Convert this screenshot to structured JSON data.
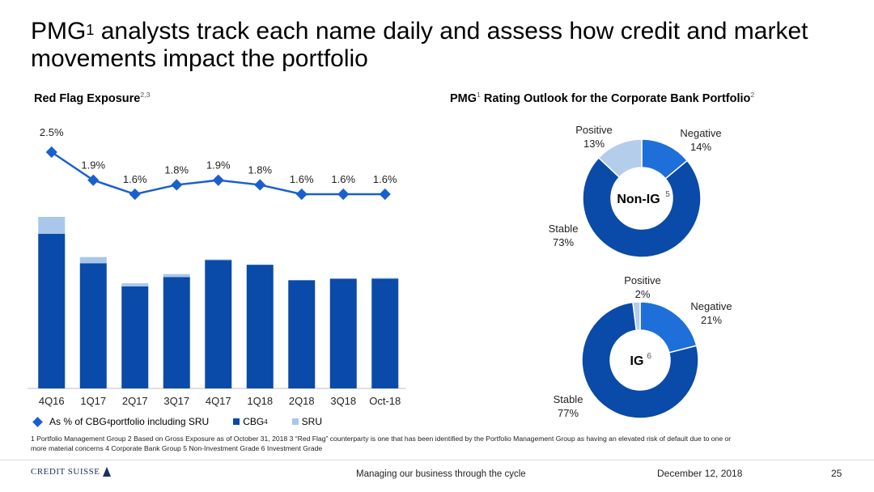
{
  "title": {
    "prefix": "PMG",
    "sup": "1",
    "text": " analysts track each name daily and assess how credit and market movements impact the portfolio"
  },
  "left_header": {
    "text": "Red Flag Exposure",
    "sup": "2,3"
  },
  "right_header": {
    "prefix": "PMG",
    "sup1": "1",
    "text": " Rating Outlook for the Corporate Bank Portfolio",
    "sup2": "2"
  },
  "colors": {
    "cbg": "#0a4aa8",
    "sru": "#a9c7ea",
    "line": "#1a5fd0",
    "pie_dark": "#0a4aa8",
    "pie_mid": "#1e6fd9",
    "pie_light": "#b4cdeb"
  },
  "chart_data": [
    {
      "type": "bar",
      "title": "Red Flag Exposure",
      "categories": [
        "4Q16",
        "1Q17",
        "2Q17",
        "3Q17",
        "4Q17",
        "1Q18",
        "2Q18",
        "3Q18",
        "Oct-18"
      ],
      "stacked": true,
      "axes_shown": false,
      "series": [
        {
          "name": "CBG",
          "values": [
            100,
            81,
            66,
            72,
            83,
            80,
            70,
            71,
            71
          ]
        },
        {
          "name": "SRU",
          "values": [
            11,
            4,
            2,
            2,
            0.5,
            0,
            0,
            0,
            0.5
          ]
        }
      ],
      "ylim": [
        0,
        120
      ],
      "legend": "bottom",
      "line_series": {
        "name": "As % of CBG portfolio including SRU",
        "values": [
          2.5,
          1.9,
          1.6,
          1.8,
          1.9,
          1.8,
          1.6,
          1.6,
          1.6
        ],
        "labels": [
          "2.5%",
          "1.9%",
          "1.6%",
          "1.8%",
          "1.9%",
          "1.8%",
          "1.6%",
          "1.6%",
          "1.6%"
        ]
      },
      "legend_labels": {
        "line": "As % of CBG",
        "line_sup": "4",
        "line_rest": " portfolio including SRU",
        "cbg": "CBG",
        "cbg_sup": "4",
        "sru": "SRU"
      }
    },
    {
      "type": "pie",
      "donut": true,
      "center_label": "Non-IG",
      "center_sup": "5",
      "slices": [
        {
          "name": "Negative",
          "value": 14,
          "label": "14%"
        },
        {
          "name": "Stable",
          "value": 73,
          "label": "73%"
        },
        {
          "name": "Positive",
          "value": 13,
          "label": "13%"
        }
      ]
    },
    {
      "type": "pie",
      "donut": true,
      "center_label": "IG",
      "center_sup": "6",
      "slices": [
        {
          "name": "Negative",
          "value": 21,
          "label": "21%"
        },
        {
          "name": "Stable",
          "value": 77,
          "label": "77%"
        },
        {
          "name": "Positive",
          "value": 2,
          "label": "2%"
        }
      ]
    }
  ],
  "footnotes": {
    "line1": "1 Portfolio Management Group    2 Based on Gross Exposure as of October 31, 2018    3 “Red Flag” counterparty is one that has been identified by the Portfolio Management Group as having an elevated risk of default due to one or",
    "line2": "more material concerns    4 Corporate Bank Group    5 Non-Investment Grade    6 Investment Grade"
  },
  "footer": {
    "logo": "CREDIT SUISSE",
    "center": "Managing our business through the cycle",
    "date": "December 12, 2018",
    "page": "25"
  }
}
